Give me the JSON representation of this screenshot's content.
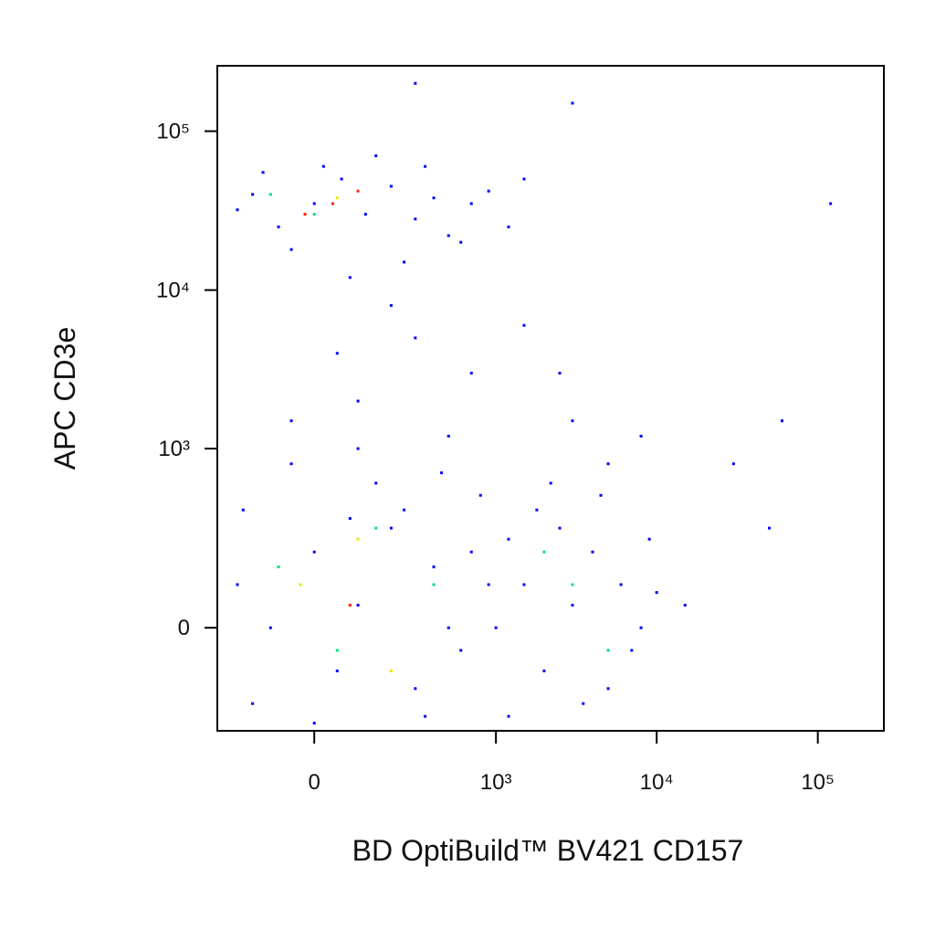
{
  "chart_data": {
    "type": "scatter",
    "x_label": "BD OptiBuild™ BV421 CD157",
    "y_label": "APC CD3e",
    "xscale": "biexponential",
    "yscale": "biexponential",
    "xlim": [
      -281,
      257000
    ],
    "ylim": [
      -317,
      258000
    ],
    "xticks": [
      0,
      {
        "value": 1000,
        "label": "10³"
      },
      {
        "value": 10000,
        "label": "10⁴"
      },
      {
        "value": 100000,
        "label": "10⁵"
      }
    ],
    "yticks": [
      0,
      {
        "value": 1000,
        "label": "10³"
      },
      {
        "value": 10000,
        "label": "10⁴"
      },
      {
        "value": 100000,
        "label": "10⁵"
      }
    ],
    "series": [
      {
        "color": "#0000ff",
        "x": [
          -150,
          -80,
          0,
          60,
          120,
          200,
          300,
          -200,
          400,
          500,
          20,
          -50,
          250,
          700,
          1200,
          150,
          80,
          -120,
          350,
          900,
          1500,
          600,
          100,
          300,
          -50,
          700,
          200,
          1500,
          3000,
          50,
          500,
          5000,
          8000,
          2500,
          -200,
          -100,
          0,
          50,
          100,
          200,
          300,
          -150,
          400,
          500,
          150,
          -50,
          250,
          600,
          700,
          800,
          350,
          0,
          100,
          -180,
          450,
          900,
          1200,
          80,
          1000,
          1500,
          2000,
          3000,
          4000,
          5000,
          6000,
          8000,
          2500,
          3500,
          7000,
          1800,
          4500,
          10000,
          1200,
          9000,
          2200,
          15000,
          60000,
          120000,
          300,
          3000,
          50000,
          30000
        ],
        "values": [
          40000,
          25000,
          35000,
          50000,
          30000,
          45000,
          28000,
          32000,
          38000,
          22000,
          60000,
          18000,
          15000,
          35000,
          25000,
          70000,
          12000,
          55000,
          60000,
          42000,
          50000,
          20000,
          2000,
          5000,
          1500,
          3000,
          8000,
          6000,
          1500,
          4000,
          1200,
          800,
          1200,
          3000,
          100,
          0,
          200,
          -100,
          50,
          300,
          -150,
          -200,
          150,
          0,
          600,
          800,
          400,
          -50,
          200,
          500,
          -250,
          -280,
          1000,
          400,
          700,
          100,
          250,
          350,
          0,
          100,
          -100,
          50,
          200,
          -150,
          100,
          0,
          300,
          -200,
          -50,
          400,
          500,
          80,
          -250,
          250,
          600,
          50,
          1500,
          35000,
          200000,
          150000,
          300,
          800
        ]
      },
      {
        "color": "#00e07a",
        "x": [
          0,
          -100,
          150,
          50,
          3000,
          2000,
          5000,
          400,
          -80
        ],
        "values": [
          30000,
          40000,
          300,
          -50,
          100,
          200,
          -50,
          100,
          150
        ]
      },
      {
        "color": "#e8e800",
        "x": [
          50,
          100,
          -30,
          200
        ],
        "values": [
          38000,
          250,
          100,
          -100
        ]
      },
      {
        "color": "#ff2000",
        "x": [
          40,
          100,
          -20,
          80
        ],
        "values": [
          35000,
          42000,
          30000,
          50
        ]
      }
    ]
  }
}
